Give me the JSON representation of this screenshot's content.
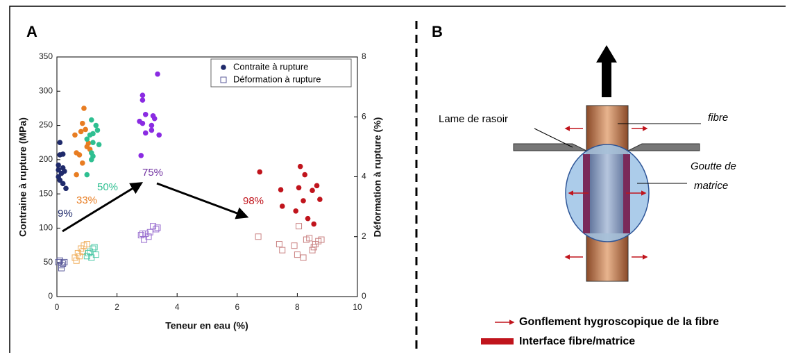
{
  "chart_data": {
    "type": "scatter",
    "panel_label": "A",
    "xlabel": "Teneur en eau (%)",
    "ylabel": "Contraine à rupture (MPa)",
    "y2label": "Déformation à rupture (%)",
    "xlim": [
      0,
      10
    ],
    "xticks": [
      0,
      2,
      4,
      6,
      8,
      10
    ],
    "ylim": [
      0,
      350
    ],
    "yticks": [
      0,
      50,
      100,
      150,
      200,
      250,
      300,
      350
    ],
    "y2lim": [
      0,
      8
    ],
    "y2ticks": [
      0,
      2,
      4,
      6,
      8
    ],
    "legend": "upper right",
    "series": [
      {
        "name": "Contraite à rupture",
        "marker": "circle",
        "axis": "y",
        "color": "#1f2a6b",
        "groups": [
          {
            "color": "#1f2a6b",
            "x": [
              0.05,
              0.1,
              0.1,
              0.2,
              0.05,
              0.15,
              0.2,
              0.1,
              0.2,
              0.3,
              0.25,
              0.05
            ],
            "values": [
              192,
              225,
              207,
              208,
              185,
              180,
              188,
              170,
              165,
              158,
              183,
              175
            ]
          },
          {
            "color": "#e87d22",
            "x": [
              0.9,
              0.85,
              0.95,
              0.8,
              0.6,
              0.65,
              0.75,
              1.05,
              1.0,
              0.85,
              0.65,
              1.1
            ],
            "values": [
              275,
              253,
              244,
              241,
              236,
              210,
              207,
              224,
              219,
              195,
              178,
              215
            ]
          },
          {
            "color": "#2ebf91",
            "x": [
              1.15,
              1.3,
              1.35,
              1.2,
              1.1,
              1.0,
              1.2,
              1.4,
              1.15,
              1.2,
              1.15,
              1.0
            ],
            "values": [
              258,
              250,
              243,
              238,
              236,
              230,
              225,
              222,
              210,
              205,
              200,
              178
            ]
          },
          {
            "color": "#8a2be2",
            "x": [
              3.35,
              2.85,
              2.85,
              2.95,
              3.2,
              3.25,
              2.75,
              2.85,
              3.15,
              2.95,
              3.4,
              2.8,
              3.15
            ],
            "values": [
              325,
              294,
              287,
              266,
              264,
              260,
              256,
              253,
              250,
              239,
              236,
              206,
              243
            ]
          },
          {
            "color": "#c0141c",
            "x": [
              6.75,
              7.45,
              7.5,
              7.95,
              8.05,
              8.1,
              8.25,
              8.2,
              8.35,
              8.5,
              8.55,
              8.65,
              8.75
            ],
            "values": [
              182,
              156,
              132,
              125,
              159,
              190,
              178,
              140,
              114,
              155,
              106,
              162,
              142
            ]
          }
        ]
      },
      {
        "name": "Déformation à rupture",
        "marker": "square",
        "axis": "y2",
        "color": "#5a5a9a",
        "groups": [
          {
            "color": "#5a5a9a",
            "x": [
              0.1,
              0.15,
              0.2,
              0.25,
              0.05,
              0.15
            ],
            "values": [
              1.2,
              1.05,
              1.1,
              1.15,
              1.15,
              0.95
            ]
          },
          {
            "color": "#f0b060",
            "x": [
              0.6,
              0.7,
              0.8,
              0.9,
              0.65,
              0.75,
              1.0,
              0.85
            ],
            "values": [
              1.3,
              1.45,
              1.6,
              1.7,
              1.2,
              1.35,
              1.75,
              1.5
            ]
          },
          {
            "color": "#4fc9a8",
            "x": [
              1.0,
              1.1,
              1.2,
              1.3,
              1.25,
              1.05,
              1.15
            ],
            "values": [
              1.35,
              1.5,
              1.6,
              1.4,
              1.65,
              1.45,
              1.3
            ]
          },
          {
            "color": "#9a70d0",
            "x": [
              2.8,
              2.9,
              2.95,
              3.1,
              3.2,
              3.3,
              3.35,
              3.05,
              2.85
            ],
            "values": [
              2.05,
              1.9,
              2.1,
              2.15,
              2.35,
              2.25,
              2.3,
              2.0,
              2.1
            ]
          },
          {
            "color": "#c98080",
            "x": [
              6.7,
              7.4,
              7.5,
              7.9,
              8.0,
              8.05,
              8.2,
              8.3,
              8.4,
              8.5,
              8.55,
              8.6,
              8.7,
              8.8
            ],
            "values": [
              2.0,
              1.75,
              1.55,
              1.7,
              1.4,
              2.35,
              1.3,
              1.9,
              1.95,
              1.55,
              1.65,
              1.75,
              1.85,
              1.9
            ]
          }
        ]
      }
    ],
    "annotations": [
      {
        "text": "9%",
        "color": "#1f2a6b"
      },
      {
        "text": "33%",
        "color": "#e87d22"
      },
      {
        "text": "50%",
        "color": "#2ebf91"
      },
      {
        "text": "75%",
        "color": "#7030a0"
      },
      {
        "text": "98%",
        "color": "#c0141c"
      }
    ]
  },
  "diagram": {
    "label": "B",
    "razor": "Lame de rasoir",
    "fibre": "fibre",
    "drop": [
      "Goutte de",
      "matrice"
    ],
    "legend": [
      "Gonflement hygroscopique de la fibre",
      "Interface fibre/matrice"
    ]
  }
}
